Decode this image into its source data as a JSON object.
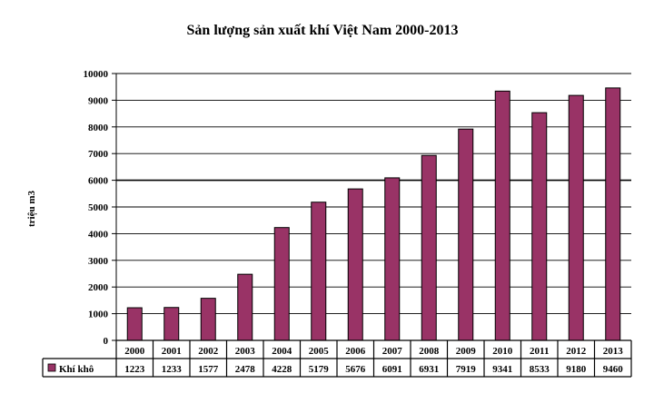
{
  "chart_data": {
    "type": "bar",
    "title": "Sản lượng sản xuất khí Việt Nam 2000-2013",
    "ylabel": "triệu m3",
    "xlabel": "",
    "categories": [
      "2000",
      "2001",
      "2002",
      "2003",
      "2004",
      "2005",
      "2006",
      "2007",
      "2008",
      "2009",
      "2010",
      "2011",
      "2012",
      "2013"
    ],
    "series": [
      {
        "name": "Khí khô",
        "color": "#993366",
        "values": [
          1223,
          1233,
          1577,
          2478,
          4228,
          5179,
          5676,
          6091,
          6931,
          7919,
          9341,
          8533,
          9180,
          9460
        ]
      }
    ],
    "ylim": [
      0,
      10000
    ],
    "yticks": [
      0,
      1000,
      2000,
      3000,
      4000,
      5000,
      6000,
      7000,
      8000,
      9000,
      10000
    ],
    "grid": true,
    "legend": "data-table-left"
  }
}
